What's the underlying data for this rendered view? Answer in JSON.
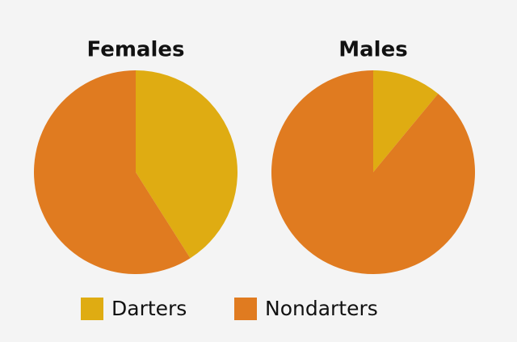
{
  "chart_data": [
    {
      "type": "pie",
      "title": "Females",
      "categories": [
        "Darters",
        "Nondarters"
      ],
      "values": [
        41,
        59
      ],
      "colors": [
        "#dfac12",
        "#e07b20"
      ]
    },
    {
      "type": "pie",
      "title": "Males",
      "categories": [
        "Darters",
        "Nondarters"
      ],
      "values": [
        11,
        89
      ],
      "colors": [
        "#dfac12",
        "#e07b20"
      ]
    }
  ]
}
